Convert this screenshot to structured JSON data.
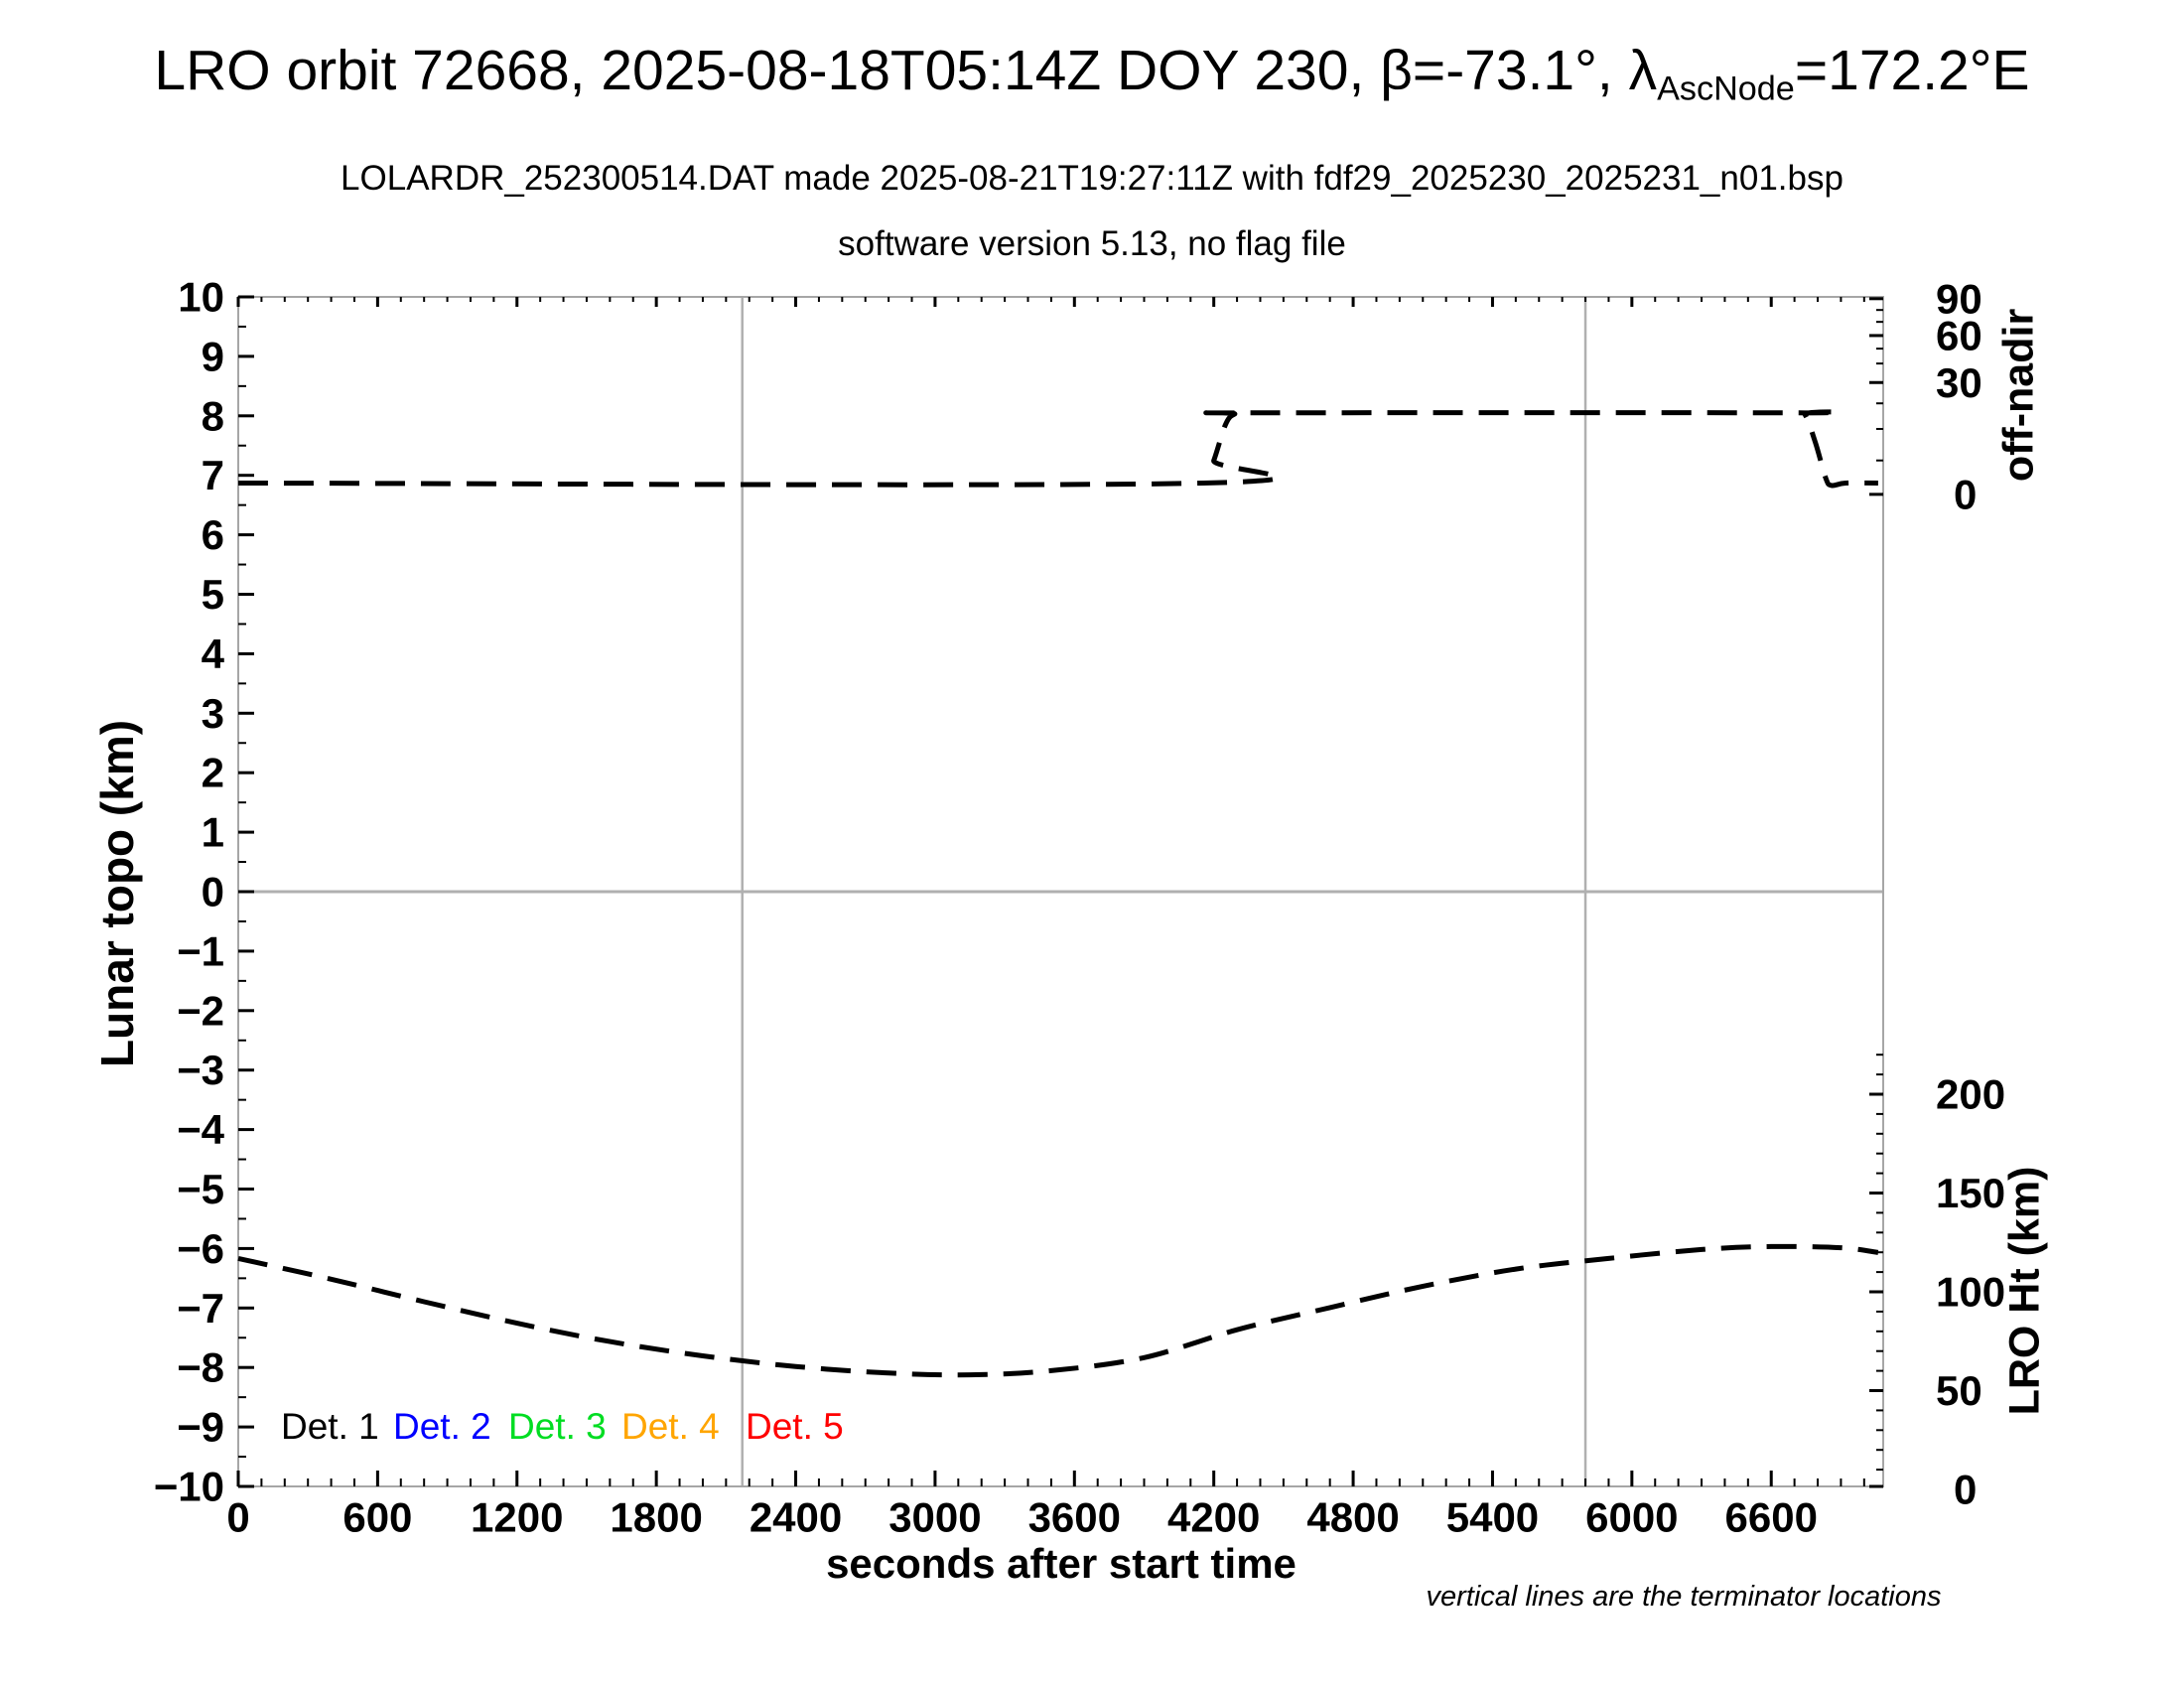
{
  "title": {
    "prefix": "LRO orbit 72668, 2025-08-18T05:14Z DOY 230, β=-73.1°, λ",
    "subscript": "AscNode",
    "suffix": "=172.2°E"
  },
  "subtitle1": "LOLARDR_252300514.DAT made 2025-08-21T19:27:11Z with fdf29_2025230_2025231_n01.bsp",
  "subtitle2": "software version 5.13, no flag file",
  "footnote": "vertical lines are the terminator locations",
  "chart_data": {
    "type": "line",
    "title": "LRO orbit 72668, 2025-08-18T05:14Z DOY 230, β=-73.1°, λAscNode=172.2°E",
    "grid": "zero-line and terminator lines only",
    "x_axis": {
      "label": "seconds after start time",
      "min": 0,
      "max": 7082,
      "major_ticks": [
        0,
        600,
        1200,
        1800,
        2400,
        3000,
        3600,
        4200,
        4800,
        5400,
        6000,
        6600
      ],
      "minor_tick_step": 100
    },
    "y_axis_left": {
      "label": "Lunar topo (km)",
      "min": -10,
      "max": 10,
      "tick_values": [
        10,
        9,
        8,
        7,
        6,
        5,
        4,
        3,
        2,
        1,
        0,
        -1,
        -2,
        -3,
        -4,
        -5,
        -6,
        -7,
        -8,
        -9,
        -10
      ],
      "tick_labels": [
        "10",
        "9",
        "8",
        "7",
        "6",
        "5",
        "4",
        "3",
        "2",
        "1",
        "0",
        "−1",
        "−2",
        "−3",
        "−4",
        "−5",
        "−6",
        "−7",
        "−8",
        "−9",
        "−10"
      ],
      "minor_tick_step": 0.5,
      "zero_gridline": true
    },
    "y_axis_right_top": {
      "label": "off-nadir",
      "scale": "nonlinear",
      "tick_labels": [
        "90",
        "60",
        "30",
        "0"
      ],
      "tick_positions_topo": [
        9.97,
        9.35,
        8.56,
        6.68
      ],
      "minor_tick_positions_topo": [
        9.78,
        9.58,
        9.13,
        8.88,
        8.21,
        7.78,
        7.25
      ]
    },
    "y_axis_right_bottom": {
      "label": "LRO Ht (km)",
      "tick_labels": [
        "200",
        "150",
        "100",
        "50",
        "0"
      ],
      "tick_values_km": [
        200,
        150,
        100,
        50,
        0
      ],
      "minor_tick_step_km": 10,
      "minor_tick_max_km": 220
    },
    "terminator_lines_s": [
      2170,
      5800
    ],
    "legend": [
      {
        "label": "Det. 1",
        "color": "#000000"
      },
      {
        "label": "Det. 2",
        "color": "#0000ff"
      },
      {
        "label": "Det. 3",
        "color": "#00dd22"
      },
      {
        "label": "Det. 4",
        "color": "#ffa500"
      },
      {
        "label": "Det. 5",
        "color": "#ff0000"
      }
    ],
    "series": [
      {
        "name": "off-nadir angle",
        "axis": "right-top",
        "style": "dashed",
        "color": "#000000",
        "x_s": [
          0,
          4155,
          4200,
          4250,
          4290,
          4360,
          6700,
          6745,
          6790,
          6835,
          6860,
          6920,
          7060
        ],
        "y_topo_units": [
          6.87,
          6.87,
          7.25,
          7.85,
          8.03,
          8.05,
          8.05,
          8.02,
          7.55,
          6.95,
          6.83,
          6.87,
          6.87
        ],
        "approx_deg": {
          "cruise": 2,
          "slew": 21
        }
      },
      {
        "name": "LRO height",
        "axis": "right-bottom",
        "style": "dashed",
        "color": "#000000",
        "x_s": [
          0,
          400,
          800,
          1200,
          1600,
          2000,
          2400,
          2800,
          3150,
          3500,
          3900,
          4300,
          4700,
          5100,
          5500,
          5900,
          6300,
          6600,
          6900,
          7060
        ],
        "ht_km": [
          116.9,
          106.4,
          95.0,
          84.1,
          74.8,
          67.6,
          62.2,
          58.9,
          58.0,
          60.1,
          66.7,
          80.8,
          92.0,
          102.8,
          111.5,
          116.9,
          121.4,
          122.9,
          122.3,
          119.9
        ]
      }
    ]
  }
}
